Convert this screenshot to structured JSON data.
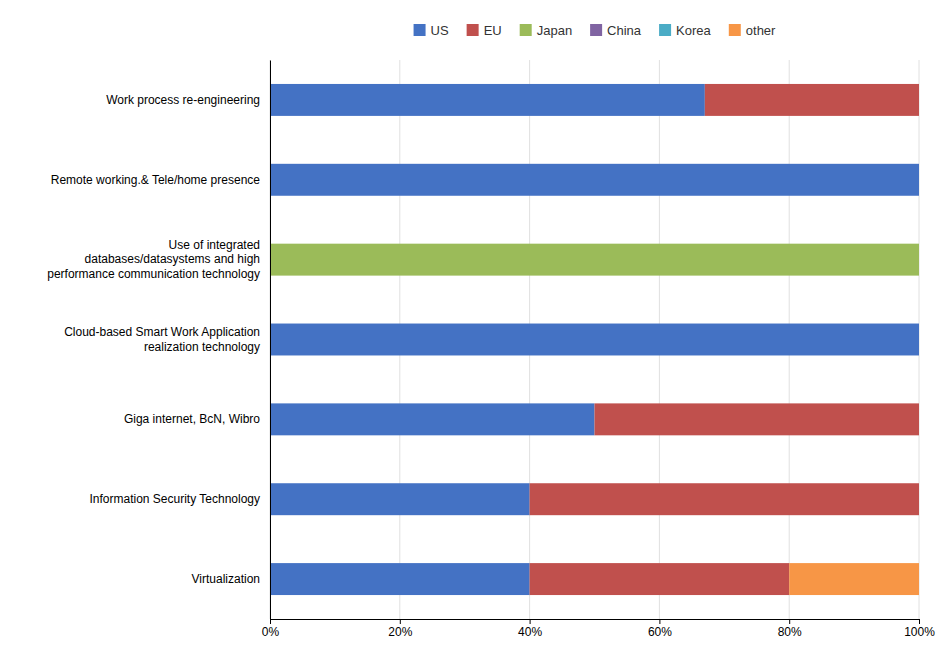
{
  "chart_data": {
    "type": "bar",
    "orientation": "horizontal",
    "stacked": true,
    "categories": [
      "Work process re-engineering",
      "Remote working.& Tele/home presence",
      "Use of integrated\ndatabases/datasystems and high\nperformance communication technology",
      "Cloud-based Smart Work Application\nrealization technology",
      "Giga internet, BcN, Wibro",
      "Information Security Technology",
      "Virtualization"
    ],
    "series": [
      {
        "name": "US",
        "color": "#4472C4",
        "values": [
          67,
          100,
          0,
          100,
          50,
          40,
          40
        ]
      },
      {
        "name": "EU",
        "color": "#C0504D",
        "values": [
          33,
          0,
          0,
          0,
          50,
          60,
          40
        ]
      },
      {
        "name": "Japan",
        "color": "#9BBB59",
        "values": [
          0,
          0,
          100,
          0,
          0,
          0,
          0
        ]
      },
      {
        "name": "China",
        "color": "#8064A2",
        "values": [
          0,
          0,
          0,
          0,
          0,
          0,
          0
        ]
      },
      {
        "name": "Korea",
        "color": "#4BACC6",
        "values": [
          0,
          0,
          0,
          0,
          0,
          0,
          0
        ]
      },
      {
        "name": "other",
        "color": "#F79646",
        "values": [
          0,
          0,
          0,
          0,
          0,
          0,
          20
        ]
      }
    ],
    "xlim": [
      0,
      100
    ],
    "xticks": [
      {
        "value": 0,
        "label": "0%"
      },
      {
        "value": 20,
        "label": "20%"
      },
      {
        "value": 40,
        "label": "40%"
      },
      {
        "value": 60,
        "label": "60%"
      },
      {
        "value": 80,
        "label": "80%"
      },
      {
        "value": 100,
        "label": "100%"
      }
    ],
    "grid": true,
    "legend": "top"
  }
}
